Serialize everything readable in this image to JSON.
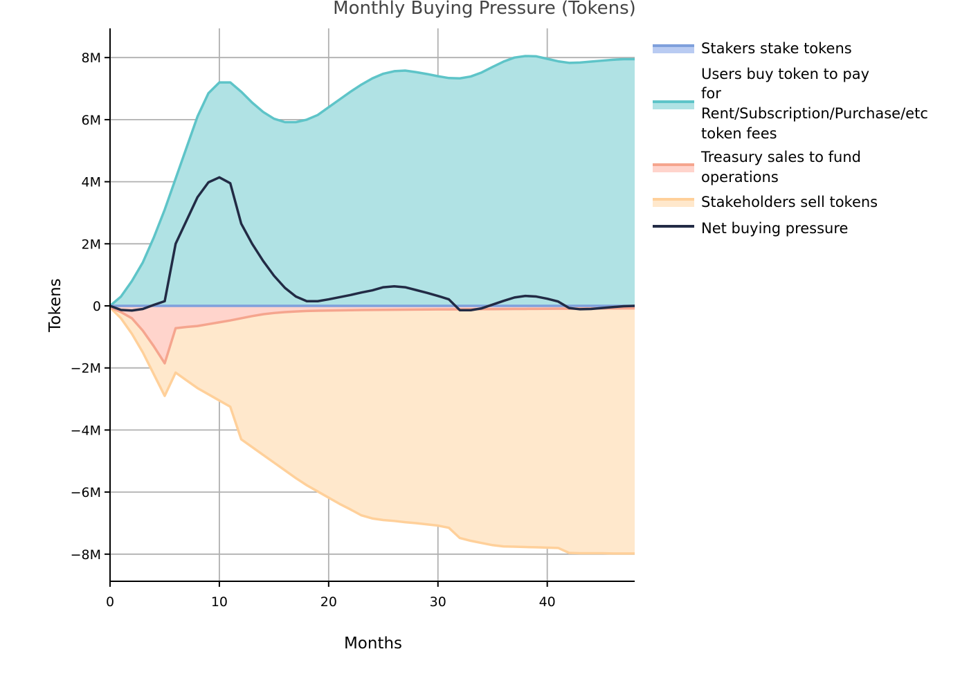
{
  "chart_data": {
    "type": "area",
    "title": "Monthly Buying Pressure (Tokens)",
    "xlabel": "Months",
    "ylabel": "Tokens",
    "xlim": [
      0,
      48
    ],
    "ylim": [
      -8900000,
      9000000
    ],
    "x_ticks": [
      0,
      10,
      20,
      30,
      40
    ],
    "x_tick_labels": [
      "0",
      "10",
      "20",
      "30",
      "40"
    ],
    "y_ticks": [
      8000000,
      6000000,
      4000000,
      2000000,
      0,
      -2000000,
      -4000000,
      -6000000,
      -8000000
    ],
    "y_tick_labels": [
      "8M",
      "6M",
      "4M",
      "2M",
      "0",
      "−2M",
      "−4M",
      "−6M",
      "−8M"
    ],
    "grid": true,
    "legend_position": "right",
    "x": [
      0,
      1,
      2,
      3,
      4,
      5,
      6,
      7,
      8,
      9,
      10,
      11,
      12,
      13,
      14,
      15,
      16,
      17,
      18,
      19,
      20,
      21,
      22,
      23,
      24,
      25,
      26,
      27,
      28,
      29,
      30,
      31,
      32,
      33,
      34,
      35,
      36,
      37,
      38,
      39,
      40,
      41,
      42,
      43,
      44,
      45,
      46,
      47,
      48
    ],
    "series": [
      {
        "name": "Stakers stake tokens",
        "kind": "area",
        "line_color": "#7fa0dc",
        "fill_color": "#b9cbf2",
        "values": [
          0,
          0,
          0,
          0,
          0,
          0,
          0,
          0,
          0,
          0,
          0,
          0,
          0,
          0,
          0,
          0,
          0,
          0,
          0,
          0,
          0,
          0,
          0,
          0,
          0,
          0,
          0,
          0,
          0,
          0,
          0,
          0,
          0,
          0,
          0,
          0,
          0,
          0,
          0,
          0,
          0,
          0,
          0,
          0,
          0,
          0,
          0,
          0,
          0
        ]
      },
      {
        "name": "Users buy token to pay for Rent/Subscription/Purchase/etc token fees",
        "legend_lines": [
          "Users buy token to pay",
          "for",
          "Rent/Subscription/Purchase/etc",
          "token fees"
        ],
        "kind": "area",
        "line_color": "#5ec4c8",
        "fill_color": "#b0e2e4",
        "values": [
          0,
          300000,
          800000,
          1400000,
          2200000,
          3100000,
          4100000,
          5100000,
          6100000,
          6850000,
          7200000,
          7200000,
          6900000,
          6550000,
          6250000,
          6030000,
          5920000,
          5920000,
          6000000,
          6150000,
          6400000,
          6650000,
          6900000,
          7130000,
          7330000,
          7480000,
          7560000,
          7580000,
          7530000,
          7470000,
          7400000,
          7340000,
          7330000,
          7390000,
          7520000,
          7700000,
          7870000,
          8000000,
          8050000,
          8040000,
          7960000,
          7880000,
          7830000,
          7840000,
          7870000,
          7900000,
          7930000,
          7950000,
          7950000
        ]
      },
      {
        "name": "Treasury sales to fund operations",
        "legend_lines": [
          "Treasury sales to fund",
          "operations"
        ],
        "kind": "area",
        "line_color": "#f5a58e",
        "fill_color": "#ffd4cc",
        "values": [
          -50000,
          -200000,
          -400000,
          -800000,
          -1300000,
          -1850000,
          -720000,
          -680000,
          -650000,
          -590000,
          -530000,
          -470000,
          -400000,
          -330000,
          -270000,
          -230000,
          -200000,
          -180000,
          -165000,
          -155000,
          -150000,
          -145000,
          -140000,
          -135000,
          -130000,
          -128000,
          -125000,
          -122000,
          -120000,
          -118000,
          -115000,
          -113000,
          -111000,
          -109000,
          -107000,
          -105000,
          -103000,
          -101000,
          -99000,
          -97000,
          -95000,
          -93000,
          -91000,
          -89000,
          -87000,
          -85000,
          -83000,
          -81000,
          -80000
        ]
      },
      {
        "name": "Stakeholders sell tokens",
        "kind": "area",
        "line_color": "#ffd09a",
        "fill_color": "#ffe8cc",
        "values": [
          -50000,
          -400000,
          -900000,
          -1500000,
          -2200000,
          -2900000,
          -2150000,
          -2400000,
          -2650000,
          -2850000,
          -3050000,
          -3250000,
          -4300000,
          -4550000,
          -4800000,
          -5050000,
          -5300000,
          -5550000,
          -5780000,
          -5980000,
          -6180000,
          -6380000,
          -6560000,
          -6750000,
          -6850000,
          -6900000,
          -6930000,
          -6970000,
          -7000000,
          -7040000,
          -7080000,
          -7150000,
          -7480000,
          -7570000,
          -7640000,
          -7710000,
          -7750000,
          -7760000,
          -7770000,
          -7780000,
          -7790000,
          -7800000,
          -7960000,
          -7970000,
          -7970000,
          -7970000,
          -7980000,
          -7980000,
          -7980000
        ]
      },
      {
        "name": "Net buying pressure",
        "kind": "line",
        "line_color": "#222b45",
        "values": [
          0,
          -130000,
          -150000,
          -100000,
          30000,
          150000,
          2000000,
          2750000,
          3500000,
          3980000,
          4140000,
          3950000,
          2650000,
          2000000,
          1450000,
          970000,
          580000,
          300000,
          150000,
          150000,
          210000,
          280000,
          350000,
          430000,
          500000,
          600000,
          630000,
          600000,
          510000,
          420000,
          320000,
          210000,
          -140000,
          -140000,
          -80000,
          40000,
          160000,
          270000,
          320000,
          300000,
          230000,
          140000,
          -70000,
          -110000,
          -100000,
          -70000,
          -40000,
          -10000,
          0
        ]
      }
    ]
  }
}
